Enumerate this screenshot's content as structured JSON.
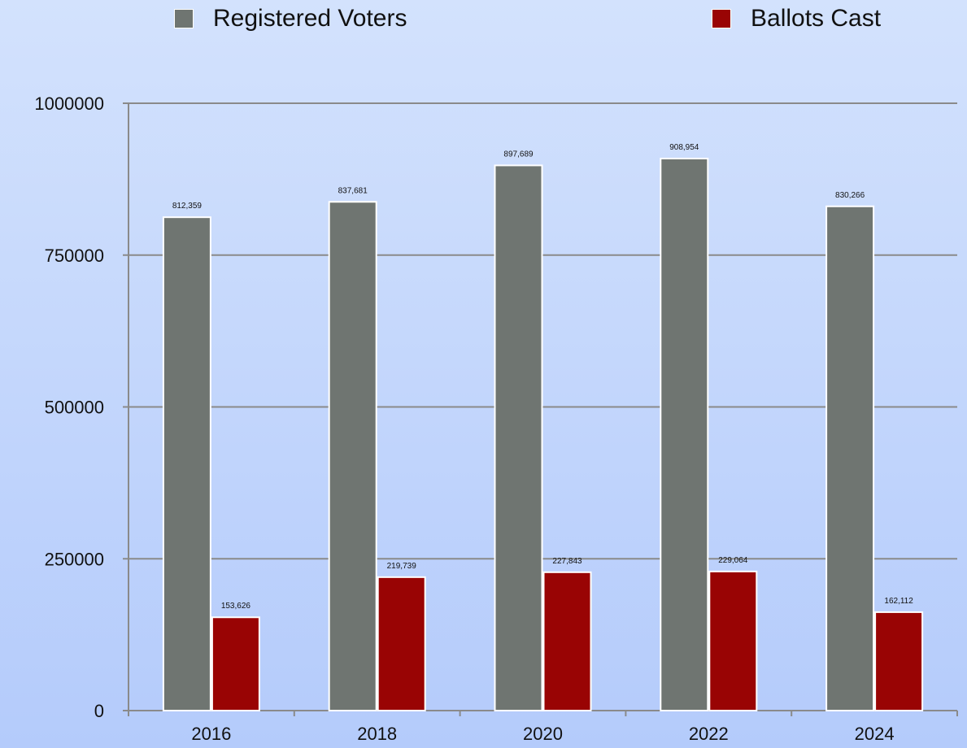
{
  "chart_data": {
    "type": "bar",
    "categories": [
      "2016",
      "2018",
      "2020",
      "2022",
      "2024"
    ],
    "series": [
      {
        "name": "Registered Voters",
        "color": "#6f7571",
        "values": [
          812359,
          837681,
          897689,
          908954,
          830266
        ],
        "labels": [
          "812,359",
          "837,681",
          "897,689",
          "908,954",
          "830,266"
        ]
      },
      {
        "name": "Ballots Cast",
        "color": "#990404",
        "values": [
          153626,
          219739,
          227843,
          229064,
          162112
        ],
        "labels": [
          "153,626",
          "219,739",
          "227,843",
          "229,064",
          "162,112"
        ]
      }
    ],
    "yticks": [
      "0",
      "250000",
      "500000",
      "750000",
      "1000000"
    ],
    "ylim": [
      0,
      1000000
    ],
    "grid": true,
    "legend_position": "top"
  }
}
